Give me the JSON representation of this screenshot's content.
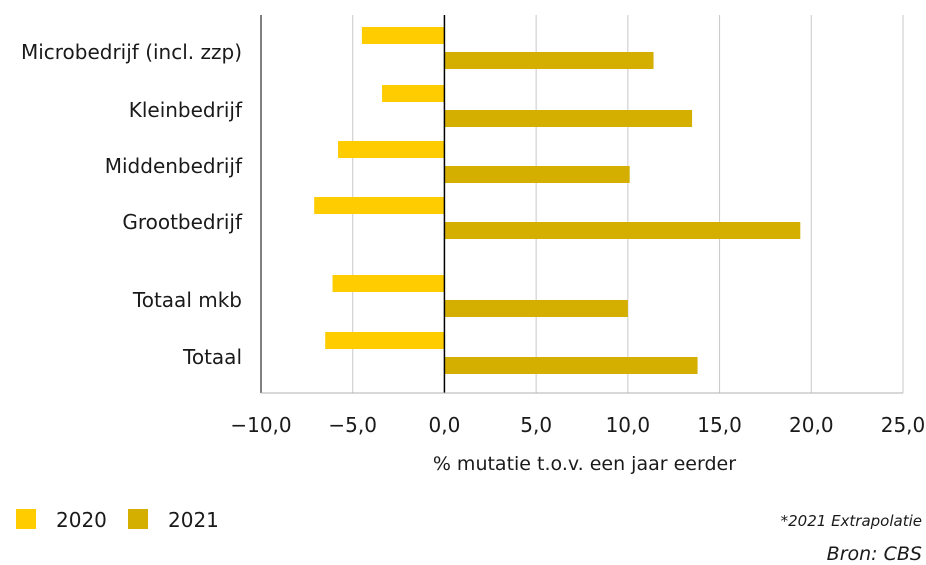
{
  "chart_data": {
    "type": "bar",
    "orientation": "horizontal",
    "categories": [
      "Microbedrijf (incl. zzp)",
      "Kleinbedrijf",
      "Middenbedrijf",
      "Grootbedrijf",
      "Totaal mkb",
      "Totaal"
    ],
    "series": [
      {
        "name": "2020",
        "color": "#FFCC00",
        "values": [
          -4.5,
          -3.4,
          -5.8,
          -7.1,
          -6.1,
          -6.5
        ]
      },
      {
        "name": "2021",
        "color": "#D4AF00",
        "values": [
          11.4,
          13.5,
          10.1,
          19.4,
          10.0,
          13.8
        ]
      }
    ],
    "xlim": [
      -10,
      25
    ],
    "xticks": [
      -10,
      -5,
      0,
      5,
      10,
      15,
      20,
      25
    ],
    "xtick_labels": [
      "−10,0",
      "−5,0",
      "0,0",
      "5,0",
      "10,0",
      "15,0",
      "20,0",
      "25,0"
    ],
    "xlabel": "% mutatie t.o.v. een jaar eerder",
    "ylabel": "",
    "grid": "vertical",
    "legend": "bottom-left"
  },
  "note": "*2021 Extrapolatie",
  "source": "Bron: CBS"
}
